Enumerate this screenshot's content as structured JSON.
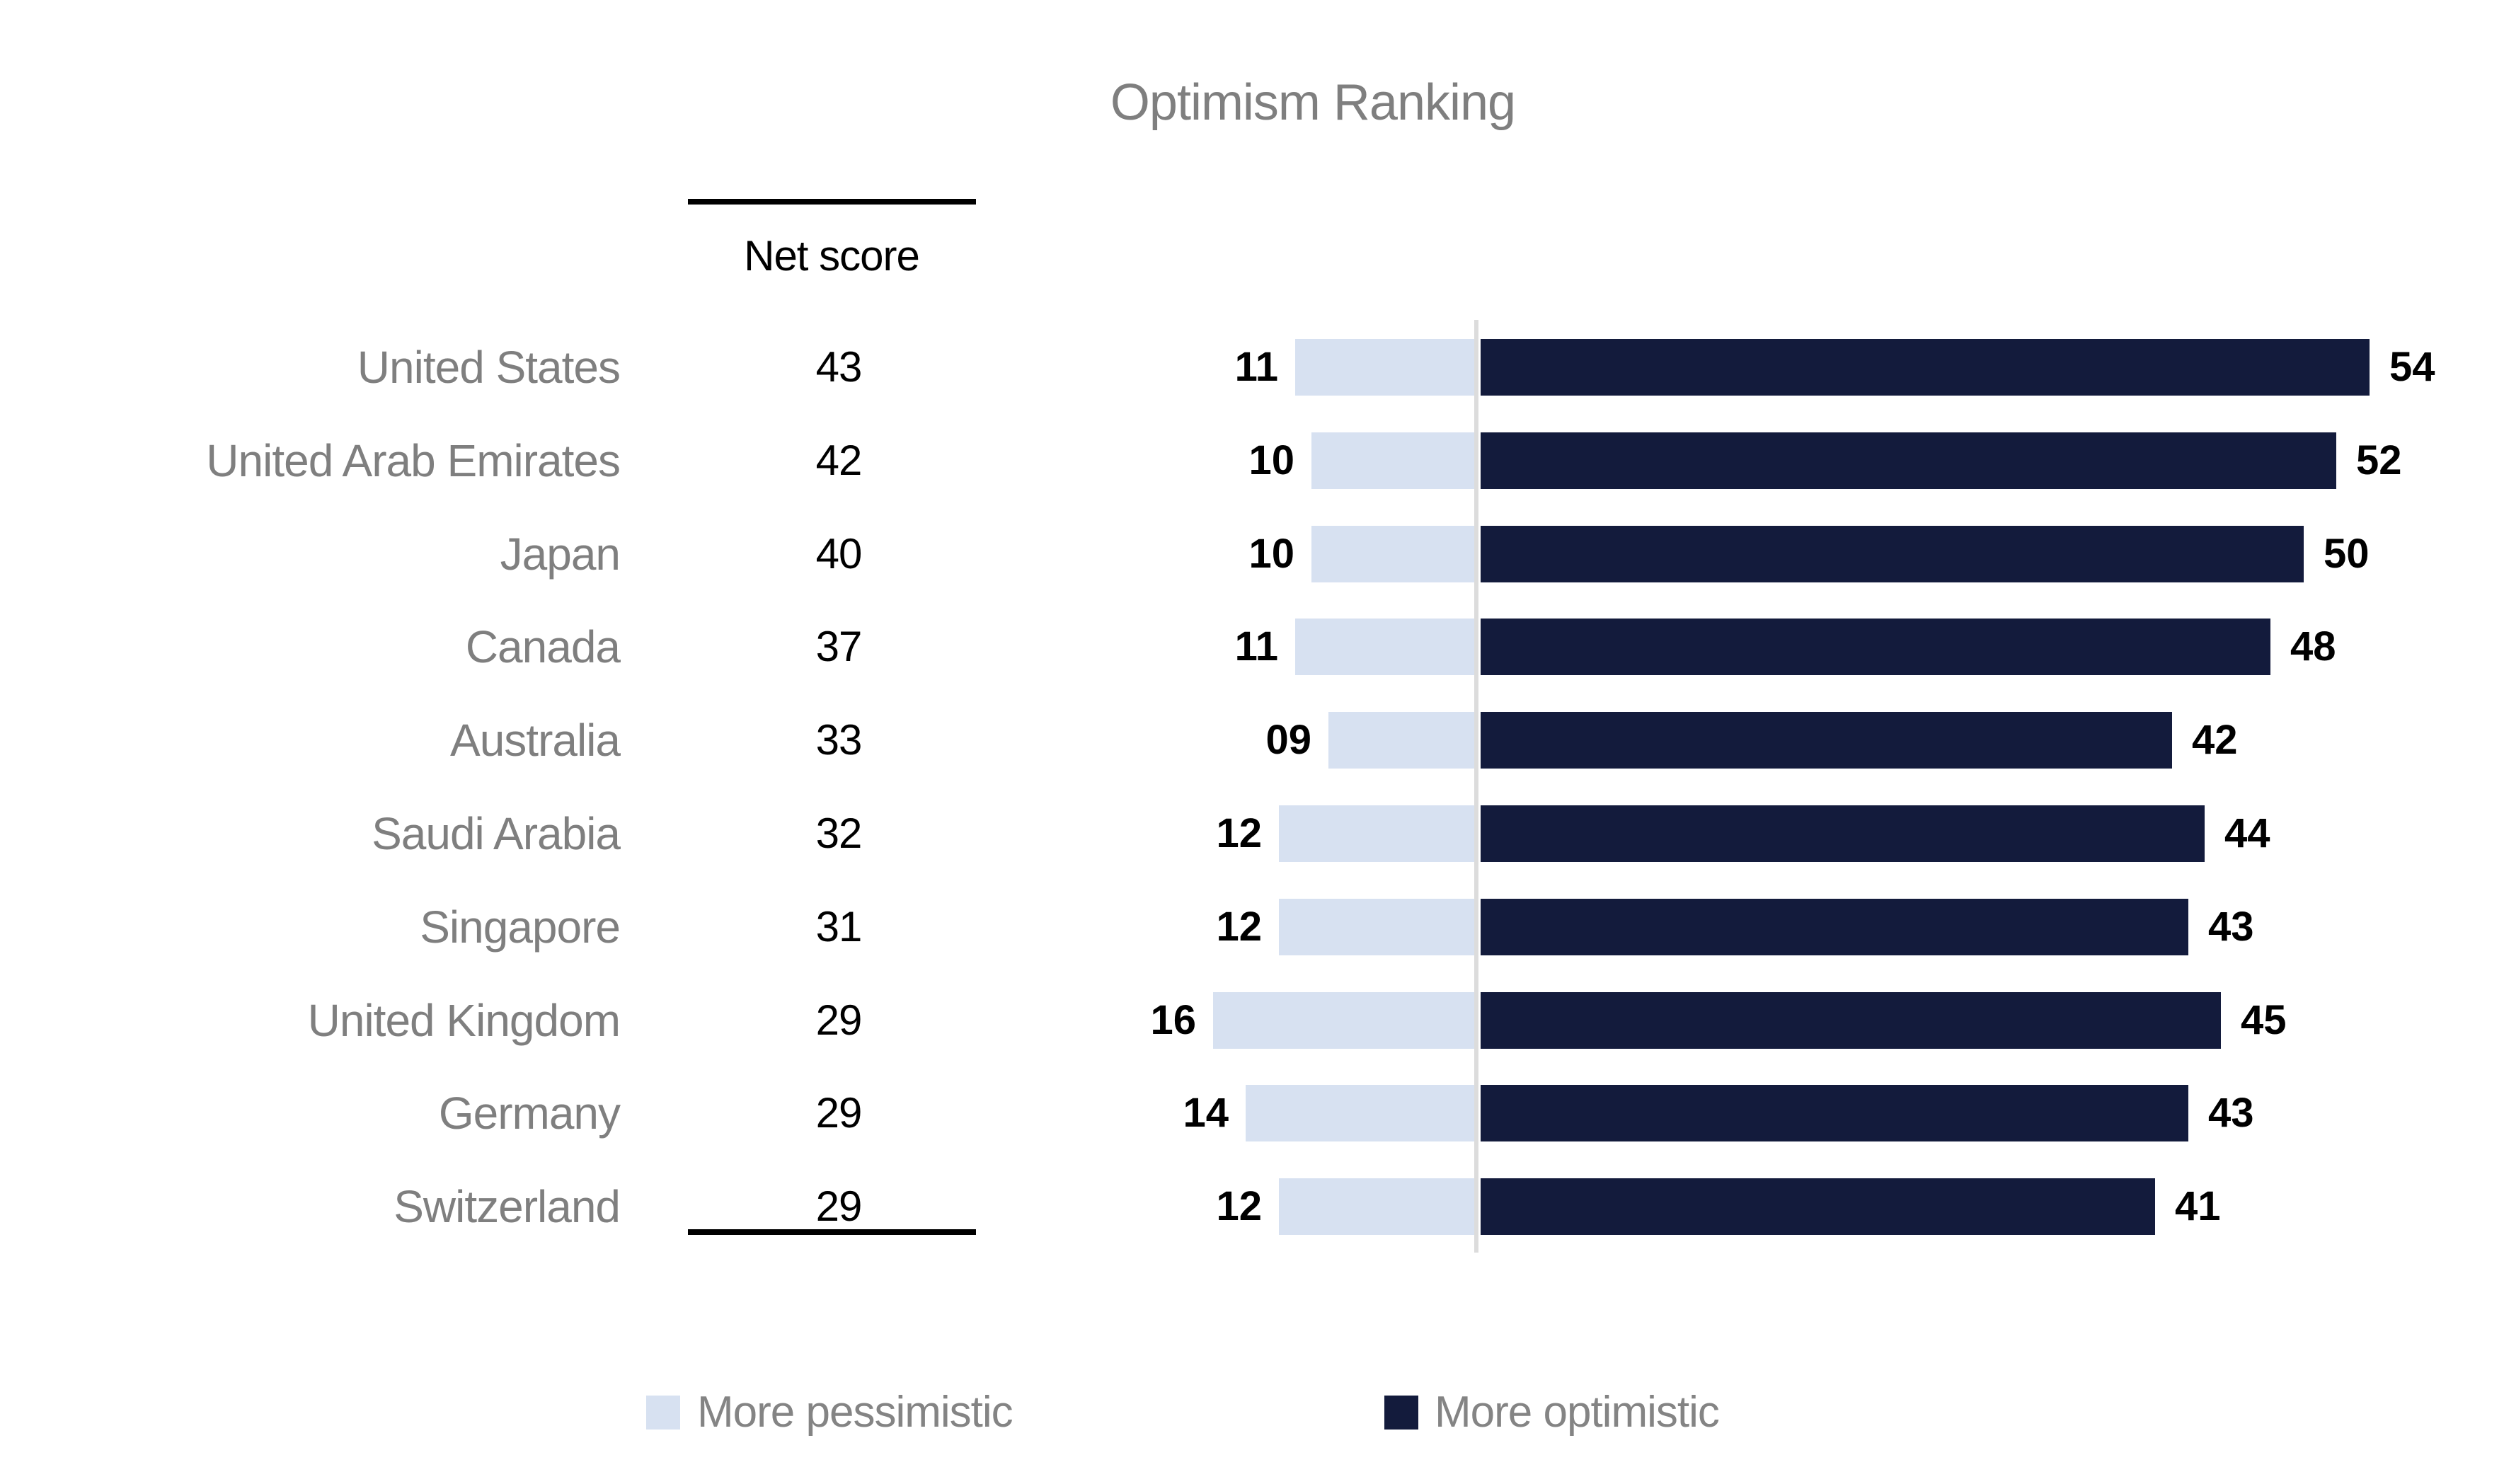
{
  "title": "Optimism Ranking",
  "net_score_header": "Net score",
  "legend": {
    "pessimistic": {
      "label": "More pessimistic",
      "color": "#d7e1f1"
    },
    "optimistic": {
      "label": "More optimistic",
      "color": "#131b3c"
    }
  },
  "colors": {
    "pessimistic_bar": "#d7e1f1",
    "optimistic_bar": "#131b3c",
    "axis_line": "#dcdcdc",
    "muted_text": "#7f7f7f",
    "value_text": "#000000"
  },
  "chart_data": {
    "type": "bar",
    "orientation": "horizontal-diverging",
    "title": "Optimism Ranking",
    "categories": [
      "United States",
      "United Arab Emirates",
      "Japan",
      "Canada",
      "Australia",
      "Saudi Arabia",
      "Singapore",
      "United Kingdom",
      "Germany",
      "Switzerland"
    ],
    "series": [
      {
        "name": "More pessimistic",
        "direction": "left",
        "color": "#d7e1f1",
        "values": [
          11,
          10,
          10,
          11,
          9,
          12,
          12,
          16,
          14,
          12
        ],
        "labels": [
          "11",
          "10",
          "10",
          "11",
          "09",
          "12",
          "12",
          "16",
          "14",
          "12"
        ]
      },
      {
        "name": "More optimistic",
        "direction": "right",
        "color": "#131b3c",
        "values": [
          54,
          52,
          50,
          48,
          42,
          44,
          43,
          45,
          43,
          41
        ],
        "labels": [
          "54",
          "52",
          "50",
          "48",
          "42",
          "44",
          "43",
          "45",
          "43",
          "41"
        ]
      }
    ],
    "net_scores": [
      43,
      42,
      40,
      37,
      33,
      32,
      31,
      29,
      29,
      29
    ],
    "net_score_header": "Net score",
    "xlim_left": 0,
    "xlim_right": 60,
    "baseline": 0,
    "gridlines": false,
    "legend_position": "bottom",
    "value_labels_shown": true
  }
}
